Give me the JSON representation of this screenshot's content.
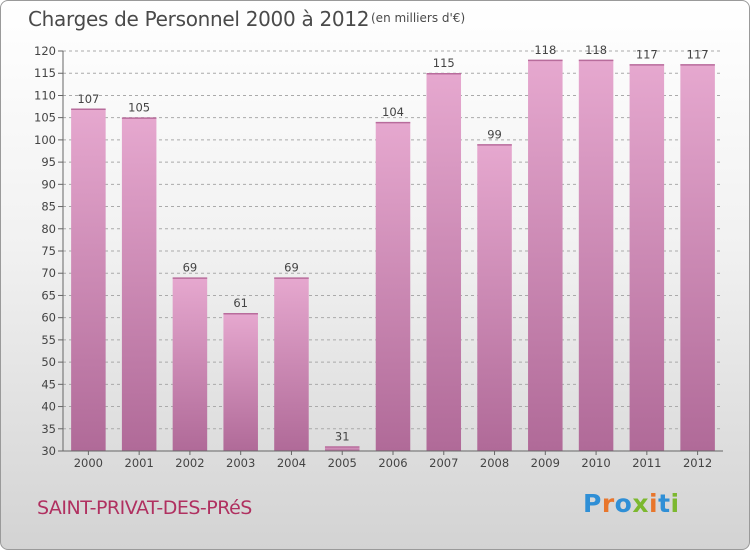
{
  "header": {
    "title": "Charges de Personnel 2000 à 2012",
    "unit": "(en milliers d'€)"
  },
  "footer": {
    "town": "SAINT-PRIVAT-DES-PRéS",
    "logo_text": "Proxiti",
    "logo_colors": [
      "#2f8fd6",
      "#e8762c",
      "#2f8fd6",
      "#7cb82f",
      "#e8762c",
      "#2f8fd6",
      "#7cb82f"
    ]
  },
  "colors": {
    "bar_light": "#e6a8cf",
    "bar_dark": "#b06a98",
    "grid": "#aaaaaa",
    "text": "#444444",
    "town": "#b03060"
  },
  "chart_data": {
    "type": "bar",
    "title": "Charges de Personnel 2000 à 2012",
    "subtitle": "(en milliers d'€)",
    "categories": [
      "2000",
      "2001",
      "2002",
      "2003",
      "2004",
      "2005",
      "2006",
      "2007",
      "2008",
      "2009",
      "2010",
      "2011",
      "2012"
    ],
    "values": [
      107,
      105,
      69,
      61,
      69,
      31,
      104,
      115,
      99,
      118,
      118,
      117,
      117
    ],
    "ylim": [
      30,
      120
    ],
    "yticks": [
      30,
      35,
      40,
      45,
      50,
      55,
      60,
      65,
      70,
      75,
      80,
      85,
      90,
      95,
      100,
      105,
      110,
      115,
      120
    ],
    "grid": "horizontal dashed",
    "xlabel": "",
    "ylabel": ""
  }
}
